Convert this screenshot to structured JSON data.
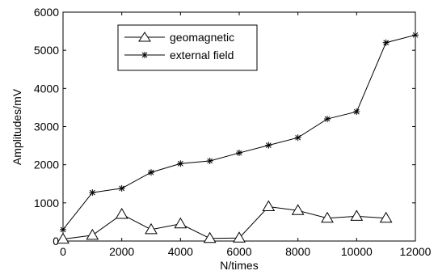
{
  "chart_data": {
    "type": "line",
    "xlabel": "N/times",
    "ylabel": "Amplitudes/mV",
    "xlim": [
      0,
      12000
    ],
    "ylim": [
      0,
      6000
    ],
    "xticks": [
      0,
      2000,
      4000,
      6000,
      8000,
      10000,
      12000
    ],
    "yticks": [
      0,
      1000,
      2000,
      3000,
      4000,
      5000,
      6000
    ],
    "grid": false,
    "legend_position": "top-left",
    "series": [
      {
        "name": "geomagnetic",
        "marker": "triangle",
        "color": "#000000",
        "x": [
          0,
          1000,
          2000,
          3000,
          4000,
          5000,
          6000,
          7000,
          8000,
          9000,
          10000,
          11000
        ],
        "y": [
          50,
          150,
          700,
          300,
          450,
          70,
          80,
          900,
          800,
          600,
          650,
          600
        ]
      },
      {
        "name": "external field",
        "marker": "asterisk",
        "color": "#000000",
        "x": [
          0,
          1000,
          2000,
          3000,
          4000,
          5000,
          6000,
          7000,
          8000,
          9000,
          10000,
          11000,
          12000
        ],
        "y": [
          300,
          1270,
          1380,
          1800,
          2030,
          2100,
          2310,
          2510,
          2710,
          3200,
          3390,
          5200,
          5400
        ]
      }
    ]
  }
}
